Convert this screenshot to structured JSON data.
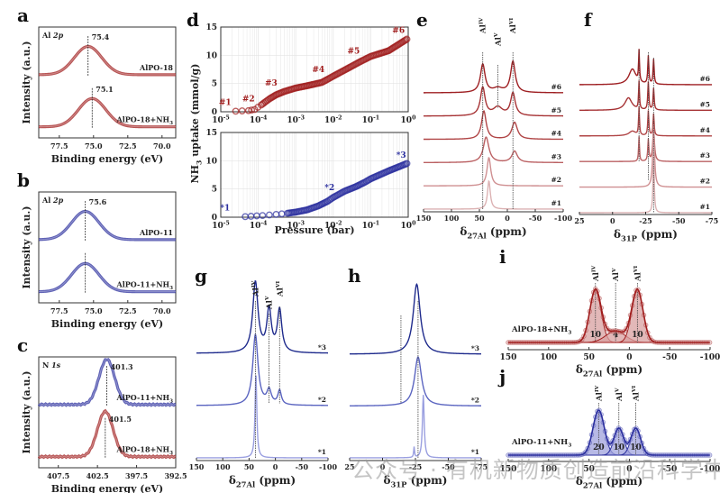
{
  "watermark": "公众号 · 有机新物质创造前沿科学中心",
  "colors": {
    "red": "#a01d1d",
    "blue": "#2b2f9e",
    "red_fill": "#d8a0a0",
    "blue_fill": "#9fa2dc"
  },
  "chart_data": [
    {
      "id": "a",
      "type": "line",
      "panel_label": "a",
      "inset_label": "Al 2p",
      "xlabel": "Binding energy (eV)",
      "ylabel": "Intensity (a.u.)",
      "xlim": [
        79,
        69
      ],
      "xticks": [
        "77.5",
        "75.0",
        "72.5",
        "70.0"
      ],
      "xtick_values": [
        77.5,
        75.0,
        72.5,
        70.0
      ],
      "series": [
        {
          "name": "AlPO-18",
          "peak": 75.4,
          "peak_label": "75.4",
          "color": "red"
        },
        {
          "name": "AlPO-18+NH3",
          "peak": 75.1,
          "peak_label": "75.1",
          "color": "red"
        }
      ]
    },
    {
      "id": "b",
      "type": "line",
      "panel_label": "b",
      "inset_label": "Al 2p",
      "xlabel": "Binding energy (eV)",
      "ylabel": "Intensity (a.u.)",
      "xlim": [
        79,
        69
      ],
      "xticks": [
        "77.5",
        "75.0",
        "72.5",
        "70.0"
      ],
      "xtick_values": [
        77.5,
        75.0,
        72.5,
        70.0
      ],
      "series": [
        {
          "name": "AlPO-11",
          "peak": 75.6,
          "peak_label": "75.6",
          "color": "blue"
        },
        {
          "name": "AlPO-11+NH3",
          "peak": 75.6,
          "peak_label": "",
          "color": "blue"
        }
      ]
    },
    {
      "id": "c",
      "type": "line",
      "panel_label": "c",
      "inset_label": "N 1s",
      "xlabel": "Binding energy (eV)",
      "ylabel": "Intensity (a.u.)",
      "xlim": [
        410,
        392.5
      ],
      "xticks": [
        "407.5",
        "402.5",
        "397.5",
        "392.5"
      ],
      "xtick_values": [
        407.5,
        402.5,
        397.5,
        392.5
      ],
      "series": [
        {
          "name": "AlPO-11+NH3",
          "peak": 401.3,
          "peak_label": "401.3",
          "color": "blue"
        },
        {
          "name": "AlPO-18+NH3",
          "peak": 401.5,
          "peak_label": "401.5",
          "color": "red"
        }
      ]
    },
    {
      "id": "d",
      "type": "scatter",
      "panel_label": "d",
      "xlabel": "Pressure (bar)",
      "ylabel": "NH3 uptake (mmol/g)",
      "xscale": "log",
      "xlim": [
        1e-05,
        1
      ],
      "ylim": [
        0,
        15
      ],
      "xticks": [
        "10-5",
        "10-4",
        "10-3",
        "10-2",
        "10-1",
        "100"
      ],
      "yticks": [
        "0",
        "5",
        "10",
        "15"
      ],
      "subplots": [
        {
          "name": "AlPO-18",
          "color": "red",
          "points": [
            [
              2.5e-05,
              0.1
            ],
            [
              5.5e-05,
              0.2
            ],
            [
              8e-05,
              0.4
            ],
            [
              0.00012,
              1.2
            ],
            [
              0.0002,
              2.3
            ],
            [
              0.0003,
              3.0
            ],
            [
              0.0005,
              3.6
            ],
            [
              0.001,
              4.2
            ],
            [
              0.002,
              4.6
            ],
            [
              0.005,
              5.2
            ],
            [
              0.01,
              6.3
            ],
            [
              0.03,
              8.0
            ],
            [
              0.05,
              8.8
            ],
            [
              0.1,
              9.8
            ],
            [
              0.3,
              10.8
            ],
            [
              1,
              13.0
            ]
          ],
          "annotations": [
            {
              "text": "#1",
              "x": 1.3e-05,
              "y": 1.2
            },
            {
              "text": "#2",
              "x": 5.5e-05,
              "y": 1.8
            },
            {
              "text": "#3",
              "x": 0.00022,
              "y": 4.6
            },
            {
              "text": "#4",
              "x": 0.004,
              "y": 7.0
            },
            {
              "text": "#5",
              "x": 0.035,
              "y": 10.3
            },
            {
              "text": "#6",
              "x": 0.55,
              "y": 14.0
            }
          ]
        },
        {
          "name": "AlPO-11",
          "color": "blue",
          "points": [
            [
              4.5e-05,
              0.1
            ],
            [
              0.00013,
              0.3
            ],
            [
              0.0003,
              0.5
            ],
            [
              0.0006,
              0.7
            ],
            [
              0.001,
              0.9
            ],
            [
              0.002,
              1.3
            ],
            [
              0.004,
              2.0
            ],
            [
              0.007,
              2.8
            ],
            [
              0.01,
              3.5
            ],
            [
              0.02,
              4.6
            ],
            [
              0.04,
              5.4
            ],
            [
              0.07,
              6.2
            ],
            [
              0.1,
              6.8
            ],
            [
              0.3,
              8.2
            ],
            [
              1,
              9.6
            ]
          ],
          "annotations": [
            {
              "text": "*1",
              "x": 1.3e-05,
              "y": 1.2
            },
            {
              "text": "*2",
              "x": 0.008,
              "y": 4.8
            },
            {
              "text": "*3",
              "x": 0.65,
              "y": 10.5
            }
          ]
        }
      ]
    },
    {
      "id": "e",
      "type": "line",
      "panel_label": "e",
      "xlabel": "δ27Al (ppm)",
      "xlim": [
        150,
        -100
      ],
      "xticks": [
        "150",
        "100",
        "50",
        "0",
        "-50",
        "-100"
      ],
      "xtick_values": [
        150,
        100,
        50,
        0,
        -50,
        -100
      ],
      "peak_labels": [
        {
          "text": "AlIV",
          "x": 44
        },
        {
          "text": "AlV",
          "x": 17
        },
        {
          "text": "AlVI",
          "x": -10
        }
      ],
      "series": [
        {
          "name": "#6",
          "peaks": [
            [
              44,
              1.0,
              5
            ],
            [
              17,
              0.15,
              10
            ],
            [
              -10,
              1.1,
              5
            ]
          ]
        },
        {
          "name": "#5",
          "peaks": [
            [
              44,
              1.0,
              5
            ],
            [
              17,
              0.3,
              10
            ],
            [
              -10,
              0.8,
              5
            ]
          ]
        },
        {
          "name": "#4",
          "peaks": [
            [
              42,
              1.0,
              5
            ],
            [
              -13,
              0.6,
              6
            ]
          ]
        },
        {
          "name": "#3",
          "peaks": [
            [
              38,
              0.9,
              6
            ],
            [
              -13,
              0.4,
              6
            ]
          ]
        },
        {
          "name": "#2",
          "peaks": [
            [
              33,
              1.0,
              4
            ]
          ]
        },
        {
          "name": "#1",
          "peaks": [
            [
              33,
              1.0,
              3
            ]
          ]
        }
      ]
    },
    {
      "id": "f",
      "type": "line",
      "panel_label": "f",
      "xlabel": "δ31P (ppm)",
      "xlim": [
        25,
        -75
      ],
      "xticks": [
        "25",
        "0",
        "-25",
        "-50",
        "-75"
      ],
      "xtick_values": [
        25,
        0,
        -25,
        -50,
        -75
      ],
      "series": [
        {
          "name": "#6",
          "peaks": [
            [
              -20,
              1.0,
              1
            ],
            [
              -27,
              0.9,
              1.2
            ],
            [
              -31,
              0.8,
              1.2
            ],
            [
              -15,
              0.5,
              8
            ]
          ]
        },
        {
          "name": "#5",
          "peaks": [
            [
              -20,
              0.9,
              1
            ],
            [
              -27,
              0.9,
              1.2
            ],
            [
              -31,
              0.7,
              1.2
            ],
            [
              -12,
              0.4,
              8
            ]
          ]
        },
        {
          "name": "#4",
          "peaks": [
            [
              -20,
              0.9,
              1
            ],
            [
              -27,
              0.8,
              1.2
            ],
            [
              -31,
              0.7,
              1.2
            ],
            [
              -15,
              0.15,
              8
            ]
          ]
        },
        {
          "name": "#3",
          "peaks": [
            [
              -20,
              0.8,
              1
            ],
            [
              -27,
              0.7,
              1.2
            ],
            [
              -31,
              1.0,
              2
            ]
          ]
        },
        {
          "name": "#2",
          "peaks": [
            [
              -31,
              2.0,
              2
            ]
          ]
        },
        {
          "name": "#1",
          "peaks": [
            [
              -31,
              2.2,
              1.2
            ]
          ]
        }
      ]
    },
    {
      "id": "g",
      "type": "line",
      "panel_label": "g",
      "xlabel": "δ27Al (ppm)",
      "xlim": [
        150,
        -100
      ],
      "xticks": [
        "150",
        "100",
        "50",
        "0",
        "-50",
        "-100"
      ],
      "xtick_values": [
        150,
        100,
        50,
        0,
        -50,
        -100
      ],
      "peak_labels": [
        {
          "text": "AlIV",
          "x": 38
        },
        {
          "text": "AlV",
          "x": 12
        },
        {
          "text": "AlVI",
          "x": -8
        }
      ],
      "series": [
        {
          "name": "*3",
          "peaks": [
            [
              38,
              1.0,
              6
            ],
            [
              12,
              0.6,
              5
            ],
            [
              -8,
              0.6,
              5
            ]
          ]
        },
        {
          "name": "*2",
          "peaks": [
            [
              38,
              1.0,
              6
            ],
            [
              12,
              0.2,
              5
            ],
            [
              -8,
              0.2,
              4
            ]
          ]
        },
        {
          "name": "*1",
          "peaks": [
            [
              37,
              1.2,
              2
            ]
          ]
        }
      ]
    },
    {
      "id": "h",
      "type": "line",
      "panel_label": "h",
      "xlabel": "δ31P (ppm)",
      "xlim": [
        25,
        -75
      ],
      "xticks": [
        "25",
        "0",
        "-25",
        "-50",
        "-75"
      ],
      "xtick_values": [
        25,
        0,
        -25,
        -50,
        -75
      ],
      "series": [
        {
          "name": "*3",
          "peaks": [
            [
              -26,
              1.0,
              8
            ]
          ]
        },
        {
          "name": "*2",
          "peaks": [
            [
              -27,
              0.7,
              8
            ]
          ]
        },
        {
          "name": "*1",
          "peaks": [
            [
              -31,
              0.9,
              2
            ],
            [
              -24,
              0.15,
              1
            ]
          ]
        }
      ]
    },
    {
      "id": "i",
      "type": "area",
      "panel_label": "i",
      "sample": "AlPO-18+NH3",
      "xlabel": "δ27Al (ppm)",
      "xlim": [
        150,
        -100
      ],
      "xticks": [
        "150",
        "100",
        "50",
        "0",
        "-50",
        "-100"
      ],
      "xtick_values": [
        150,
        100,
        50,
        0,
        -50,
        -100
      ],
      "components": [
        {
          "label": "AlIV",
          "center": 42,
          "height": 1.0,
          "width": 7,
          "area_label": "10"
        },
        {
          "label": "AlV",
          "center": 17,
          "height": 0.22,
          "width": 12,
          "area_label": "4"
        },
        {
          "label": "AlVI",
          "center": -10,
          "height": 1.0,
          "width": 7,
          "area_label": "10"
        }
      ],
      "color": "red"
    },
    {
      "id": "j",
      "type": "area",
      "panel_label": "j",
      "sample": "AlPO-11+NH3",
      "xlabel": "δ27Al (ppm)",
      "xlim": [
        150,
        -100
      ],
      "xticks": [
        "150",
        "100",
        "50",
        "0",
        "-50",
        "-100"
      ],
      "xtick_values": [
        150,
        100,
        50,
        0,
        -50,
        -100
      ],
      "components": [
        {
          "label": "AlIV",
          "center": 38,
          "height": 1.0,
          "width": 7,
          "area_label": "20"
        },
        {
          "label": "AlV",
          "center": 13,
          "height": 0.6,
          "width": 6,
          "area_label": "10"
        },
        {
          "label": "AlVI",
          "center": -8,
          "height": 0.6,
          "width": 6,
          "area_label": "10"
        }
      ],
      "color": "blue"
    }
  ]
}
